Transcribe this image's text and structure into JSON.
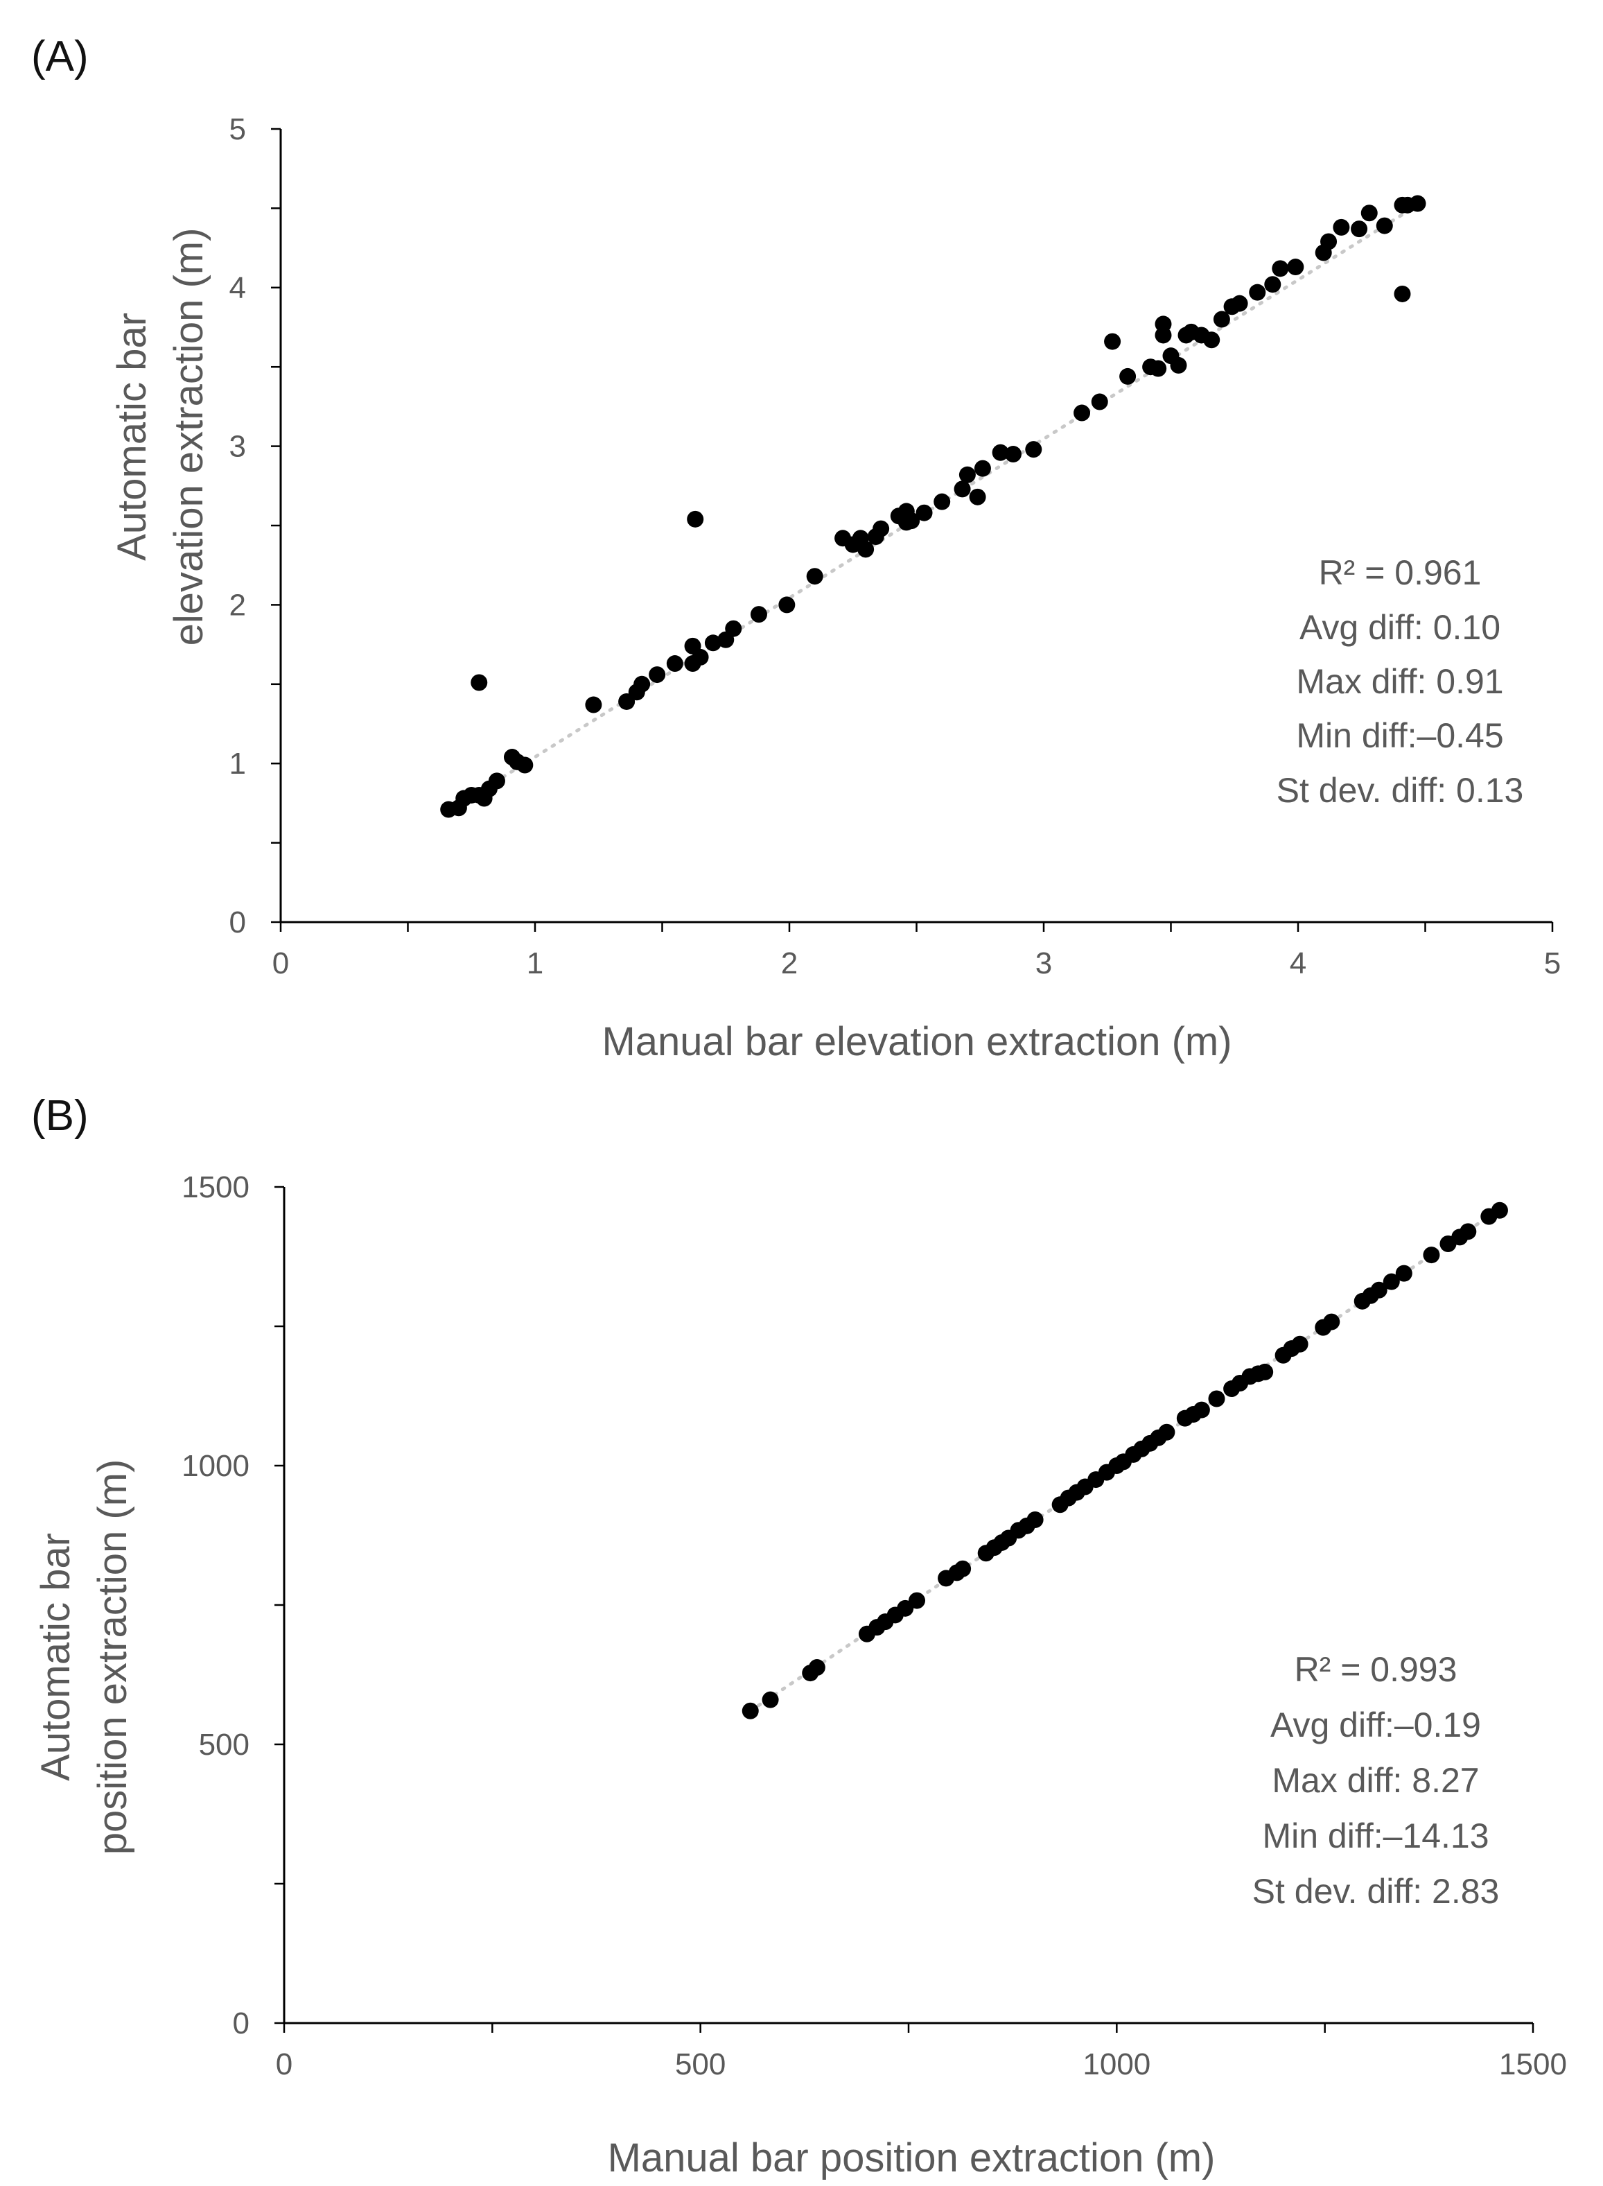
{
  "chart_data": [
    {
      "type": "scatter",
      "panel_label": "(A)",
      "title": "",
      "xlabel": "Manual bar elevation extraction (m)",
      "ylabel_lines": [
        "Automatic bar",
        "elevation extraction (m)"
      ],
      "xlim": [
        0,
        5
      ],
      "ylim": [
        0,
        5
      ],
      "xticks": [
        0,
        1,
        2,
        3,
        4,
        5
      ],
      "yticks": [
        0,
        1,
        2,
        3,
        4,
        5
      ],
      "tick_labels_x": [
        "0",
        "1",
        "2",
        "3",
        "4",
        "5"
      ],
      "tick_labels_y": [
        "0",
        "1",
        "2",
        "3",
        "4",
        "5"
      ],
      "minor_ticks": [
        0.5,
        1.5,
        2.5,
        3.5,
        4.5
      ],
      "trendline": {
        "style": "dotted",
        "color": "#c8c8c8",
        "x": [
          0.68,
          4.47
        ],
        "y": [
          0.72,
          4.52
        ]
      },
      "stats": [
        "R² = 0.961",
        "Avg diff: 0.10",
        "Max diff: 0.91",
        "Min diff:–0.45",
        "St dev. diff: 0.13"
      ],
      "stats_position": "right",
      "series": [
        {
          "name": "bars",
          "marker": "filled-circle",
          "color": "#000000",
          "x": [
            0.66,
            0.72,
            0.7,
            0.75,
            0.78,
            0.8,
            0.82,
            0.85,
            0.78,
            0.91,
            0.93,
            0.96,
            1.23,
            1.36,
            1.4,
            1.42,
            1.48,
            1.55,
            1.62,
            1.62,
            1.65,
            1.7,
            1.75,
            1.78,
            1.63,
            1.88,
            1.99,
            2.1,
            2.21,
            2.25,
            2.28,
            2.3,
            2.34,
            2.36,
            2.43,
            2.46,
            2.46,
            2.48,
            2.53,
            2.6,
            2.68,
            2.7,
            2.74,
            2.76,
            2.83,
            2.88,
            2.96,
            3.15,
            3.22,
            3.27,
            3.33,
            3.42,
            3.45,
            3.47,
            3.47,
            3.5,
            3.53,
            3.56,
            3.58,
            3.62,
            3.66,
            3.7,
            3.74,
            3.77,
            3.84,
            3.9,
            3.93,
            3.99,
            4.1,
            4.12,
            4.17,
            4.24,
            4.28,
            4.34,
            4.41,
            4.43,
            4.47,
            4.41
          ],
          "y": [
            0.71,
            0.78,
            0.72,
            0.8,
            0.8,
            0.78,
            0.84,
            0.89,
            1.51,
            1.04,
            1.01,
            0.99,
            1.37,
            1.39,
            1.45,
            1.5,
            1.56,
            1.63,
            1.63,
            1.74,
            1.67,
            1.76,
            1.78,
            1.85,
            2.54,
            1.94,
            2.0,
            2.18,
            2.42,
            2.38,
            2.42,
            2.35,
            2.43,
            2.48,
            2.56,
            2.52,
            2.59,
            2.53,
            2.58,
            2.65,
            2.73,
            2.82,
            2.68,
            2.86,
            2.96,
            2.95,
            2.98,
            3.21,
            3.28,
            3.66,
            3.44,
            3.5,
            3.49,
            3.7,
            3.77,
            3.57,
            3.51,
            3.7,
            3.72,
            3.7,
            3.67,
            3.8,
            3.88,
            3.9,
            3.97,
            4.02,
            4.12,
            4.13,
            4.22,
            4.29,
            4.38,
            4.37,
            4.47,
            4.39,
            4.52,
            4.52,
            4.53,
            3.96
          ]
        }
      ]
    },
    {
      "type": "scatter",
      "panel_label": "(B)",
      "title": "",
      "xlabel": "Manual bar position extraction (m)",
      "ylabel_lines": [
        "Automatic bar",
        "position extraction (m)"
      ],
      "xlim": [
        0,
        1500
      ],
      "ylim": [
        0,
        1500
      ],
      "xticks": [
        0,
        500,
        1000,
        1500
      ],
      "yticks": [
        0,
        500,
        1000,
        1500
      ],
      "tick_labels_x": [
        "0",
        "500",
        "1000",
        "1500"
      ],
      "tick_labels_y": [
        "0",
        "500",
        "1000",
        "1500"
      ],
      "minor_ticks": [
        250,
        750,
        1250
      ],
      "trendline": {
        "style": "dotted",
        "color": "#c8c8c8",
        "x": [
          560,
          1460
        ],
        "y": [
          560,
          1460
        ]
      },
      "stats": [
        "R² = 0.993",
        "Avg diff:–0.19",
        "Max diff: 8.27",
        "Min diff:–14.13",
        "St dev. diff: 2.83"
      ],
      "stats_position": "right",
      "series": [
        {
          "name": "bars",
          "marker": "filled-circle",
          "color": "#000000",
          "x": [
            560,
            584,
            632,
            640,
            700,
            712,
            722,
            734,
            746,
            760,
            795,
            808,
            815,
            843,
            853,
            862,
            870,
            882,
            892,
            902,
            932,
            942,
            952,
            962,
            975,
            988,
            1000,
            1008,
            1020,
            1030,
            1040,
            1050,
            1060,
            1082,
            1092,
            1102,
            1120,
            1138,
            1148,
            1160,
            1170,
            1178,
            1200,
            1210,
            1220,
            1248,
            1258,
            1295,
            1305,
            1315,
            1330,
            1345,
            1378,
            1398,
            1412,
            1422,
            1447,
            1460
          ],
          "y": [
            560,
            580,
            628,
            638,
            698,
            710,
            720,
            732,
            744,
            758,
            798,
            808,
            815,
            843,
            853,
            862,
            870,
            884,
            892,
            903,
            930,
            942,
            952,
            962,
            975,
            988,
            1000,
            1007,
            1020,
            1030,
            1040,
            1050,
            1060,
            1085,
            1092,
            1100,
            1120,
            1138,
            1148,
            1160,
            1165,
            1168,
            1198,
            1210,
            1218,
            1248,
            1258,
            1295,
            1305,
            1315,
            1330,
            1345,
            1378,
            1398,
            1410,
            1420,
            1447,
            1458
          ]
        }
      ]
    }
  ]
}
